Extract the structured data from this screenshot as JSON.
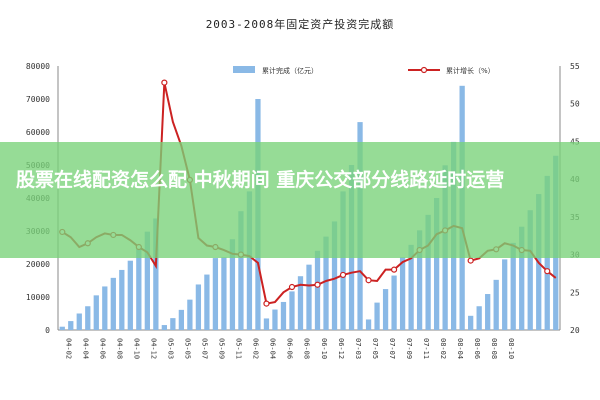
{
  "chart_data": {
    "type": "bar+line",
    "title": "2003-2008年固定资产投资完成额",
    "legend": {
      "bar_label": "累计完成（亿元）",
      "line_label": "累计增长（%）",
      "placement": "top"
    },
    "y_left": {
      "ticks": [
        "0",
        "10000",
        "20000",
        "30000",
        "40000",
        "50000",
        "60000",
        "70000",
        "80000"
      ],
      "range": [
        0,
        80000
      ]
    },
    "y_right": {
      "ticks": [
        "20",
        "25",
        "30",
        "35",
        "40",
        "45",
        "50",
        "55"
      ],
      "range": [
        20,
        55
      ]
    },
    "series": [
      {
        "type": "bar",
        "color": "#8ab9e6",
        "values": [
          1000,
          2700,
          5000,
          7200,
          10500,
          13200,
          15800,
          18200,
          21000,
          25000,
          29800,
          33800,
          1500,
          3600,
          6100,
          9200,
          13800,
          16800,
          21800,
          22000,
          27500,
          36000,
          42000,
          70000,
          3500,
          6200,
          8500,
          11700,
          16300,
          19800,
          24000,
          28300,
          32900,
          42000,
          50000,
          63000,
          3200,
          8300,
          12400,
          16500,
          22000,
          25800,
          30200,
          34900,
          40000,
          49900,
          57000,
          74000,
          4300,
          7200,
          10900,
          15200,
          21400,
          26400,
          31300,
          36300,
          41200,
          46700,
          52800
        ]
      },
      {
        "type": "line",
        "color": "#cc2222",
        "values": [
          33,
          32.3,
          31,
          31.5,
          32.3,
          32.8,
          32.6,
          32.6,
          31.9,
          31,
          30.3,
          28.5,
          52.8,
          47.6,
          44.4,
          39.9,
          32.2,
          31.2,
          31,
          30.6,
          30.1,
          30,
          29.8,
          28.9,
          23.5,
          23.7,
          25,
          25.7,
          26,
          25.9,
          26,
          26.5,
          26.8,
          27.3,
          27.6,
          27.8,
          26.6,
          26.5,
          28,
          28,
          29,
          29.5,
          30.6,
          31.2,
          32.7,
          33.2,
          33.8,
          33.5,
          29.2,
          29.5,
          30.5,
          30.7,
          31.5,
          31.2,
          30.6,
          30.5,
          28.9,
          27.8,
          26.9
        ]
      }
    ],
    "x_labels": [
      "04-02",
      "04-04",
      "04-06",
      "04-08",
      "04-10",
      "04-12",
      "05-03",
      "05-05",
      "05-07",
      "05-09",
      "05-11",
      "06-02",
      "06-04",
      "06-06",
      "06-08",
      "06-10",
      "06-12",
      "07-03",
      "07-05",
      "07-07",
      "07-09",
      "07-11",
      "08-02",
      "08-04",
      "08-06",
      "08-08",
      "08-10"
    ],
    "grid": false
  },
  "overlay": {
    "text": "股票在线配资怎么配 中秋期间 重庆公交部分线路延时运营"
  }
}
